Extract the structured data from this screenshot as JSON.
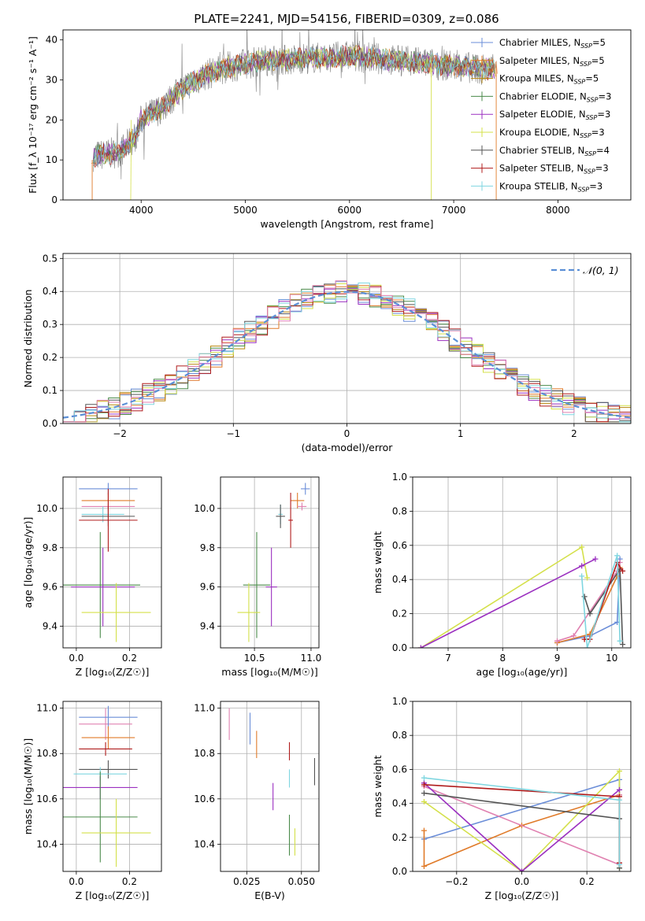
{
  "figure_title": "PLATE=2241, MJD=54156, FIBERID=0309, z=0.086",
  "colors": {
    "Chabrier MILES": "#6a8dd8",
    "Salpeter MILES": "#e07b2a",
    "Kroupa MILES": "#b8860b",
    "Chabrier ELODIE": "#4a8a4a",
    "Salpeter ELODIE": "#9b30c0",
    "Kroupa ELODIE": "#d4e04a",
    "Chabrier STELIB": "#555555",
    "Salpeter STELIB": "#b01c1c",
    "Kroupa STELIB": "#7fd6e0",
    "pink": "#e080b0",
    "gaussian": "#5b8fd6"
  },
  "chart_data": [
    {
      "id": "spectrum",
      "type": "line",
      "title": "PLATE=2241, MJD=54156, FIBERID=0309, z=0.086",
      "xlabel": "wavelength [Angstrom, rest frame]",
      "ylabel": "Flux [f_λ 10⁻¹⁷ erg cm⁻² s⁻¹ A⁻¹]",
      "xlim": [
        3250,
        8700
      ],
      "ylim": [
        0,
        42.5
      ],
      "xticks": [
        4000,
        5000,
        6000,
        7000,
        8000
      ],
      "yticks": [
        0,
        10,
        20,
        30,
        40
      ],
      "grid": false,
      "legend_position": "right",
      "continuum_x": [
        3550,
        3800,
        3950,
        4000,
        4200,
        4400,
        4600,
        4800,
        5000,
        5200,
        5400,
        5600,
        5800,
        6000,
        6200,
        6400,
        6600,
        6800,
        7000,
        7200,
        7400
      ],
      "continuum_y": [
        11,
        12,
        16,
        20,
        23,
        28,
        31,
        33,
        34,
        35,
        35,
        35.5,
        35.5,
        36,
        35.5,
        35,
        34.5,
        34,
        33.5,
        33,
        32.5
      ],
      "series": [
        {
          "name": "Chabrier MILES, N_SSP=5"
        },
        {
          "name": "Salpeter MILES, N_SSP=5"
        },
        {
          "name": "Kroupa MILES, N_SSP=5"
        },
        {
          "name": "Chabrier ELODIE, N_SSP=3"
        },
        {
          "name": "Salpeter ELODIE, N_SSP=3"
        },
        {
          "name": "Kroupa ELODIE, N_SSP=3"
        },
        {
          "name": "Chabrier STELIB, N_SSP=4"
        },
        {
          "name": "Salpeter STELIB, N_SSP=3"
        },
        {
          "name": "Kroupa STELIB, N_SSP=3"
        }
      ]
    },
    {
      "id": "residuals",
      "type": "step",
      "xlabel": "(data-model)/error",
      "ylabel": "Normed distribution",
      "xlim": [
        -2.5,
        2.5
      ],
      "ylim": [
        0,
        0.515
      ],
      "xticks": [
        -2,
        -1,
        0,
        1,
        2
      ],
      "yticks": [
        0.0,
        0.1,
        0.2,
        0.3,
        0.4,
        0.5
      ],
      "grid": true,
      "legend": [
        {
          "name": "𝒩(0, 1)"
        }
      ],
      "legend_position": "top-right",
      "bin_width": 0.1
    },
    {
      "id": "age_vs_Z",
      "type": "errorbar",
      "xlabel": "Z [log₁₀(Z/Z☉)]",
      "ylabel": "age  [log₁₀(age/yr)]",
      "xlim": [
        -0.05,
        0.32
      ],
      "ylim": [
        9.29,
        10.16
      ],
      "xticks": [
        0.0,
        0.2
      ],
      "yticks": [
        9.4,
        9.6,
        9.8,
        10.0
      ],
      "grid": true,
      "points": [
        {
          "c": "Chabrier MILES",
          "x": 0.12,
          "xe": 0.11,
          "y": 10.1,
          "ye": 0.03
        },
        {
          "c": "Salpeter MILES",
          "x": 0.12,
          "xe": 0.1,
          "y": 10.04,
          "ye": 0.04
        },
        {
          "c": "pink",
          "x": 0.12,
          "xe": 0.1,
          "y": 10.01,
          "ye": 0.02
        },
        {
          "c": "Kroupa STELIB",
          "x": 0.1,
          "xe": 0.08,
          "y": 9.97,
          "ye": 0.04
        },
        {
          "c": "Chabrier STELIB",
          "x": 0.12,
          "xe": 0.1,
          "y": 9.96,
          "ye": 0.05
        },
        {
          "c": "Salpeter STELIB",
          "x": 0.12,
          "xe": 0.11,
          "y": 9.94,
          "ye": 0.16
        },
        {
          "c": "Chabrier ELODIE",
          "x": 0.09,
          "xe": 0.15,
          "y": 9.61,
          "ye": 0.27
        },
        {
          "c": "Salpeter ELODIE",
          "x": 0.1,
          "xe": 0.12,
          "y": 9.6,
          "ye": 0.2
        },
        {
          "c": "Kroupa ELODIE",
          "x": 0.15,
          "xe": 0.13,
          "y": 9.47,
          "ye": 0.15
        }
      ]
    },
    {
      "id": "age_vs_mass",
      "type": "errorbar",
      "xlabel": "mass [log₁₀(M/M☉)]",
      "ylabel": "",
      "xlim": [
        10.2,
        11.07
      ],
      "ylim": [
        9.29,
        10.16
      ],
      "xticks": [
        10.5,
        11.0
      ],
      "yticks": [
        9.4,
        9.6,
        9.8,
        10.0
      ],
      "grid": true,
      "points": [
        {
          "c": "Chabrier MILES",
          "x": 10.95,
          "xe": 0.04,
          "y": 10.1,
          "ye": 0.03
        },
        {
          "c": "Salpeter MILES",
          "x": 10.88,
          "xe": 0.06,
          "y": 10.04,
          "ye": 0.04
        },
        {
          "c": "pink",
          "x": 10.92,
          "xe": 0.04,
          "y": 10.01,
          "ye": 0.02
        },
        {
          "c": "Kroupa STELIB",
          "x": 10.73,
          "xe": 0.02,
          "y": 9.97,
          "ye": 0.05
        },
        {
          "c": "Chabrier STELIB",
          "x": 10.73,
          "xe": 0.04,
          "y": 9.96,
          "ye": 0.06
        },
        {
          "c": "Salpeter STELIB",
          "x": 10.82,
          "xe": 0.02,
          "y": 9.94,
          "ye": 0.14
        },
        {
          "c": "Chabrier ELODIE",
          "x": 10.52,
          "xe": 0.12,
          "y": 9.61,
          "ye": 0.27
        },
        {
          "c": "Salpeter ELODIE",
          "x": 10.65,
          "xe": 0.05,
          "y": 9.6,
          "ye": 0.2
        },
        {
          "c": "Kroupa ELODIE",
          "x": 10.45,
          "xe": 0.1,
          "y": 9.47,
          "ye": 0.15
        }
      ]
    },
    {
      "id": "massweight_vs_age",
      "type": "line",
      "xlabel": "age  [log₁₀(age/yr)]",
      "ylabel": "mass weight",
      "xlim": [
        6.35,
        10.35
      ],
      "ylim": [
        0,
        1.0
      ],
      "xticks": [
        7,
        8,
        9,
        10
      ],
      "yticks": [
        0.0,
        0.2,
        0.4,
        0.6,
        0.8,
        1.0
      ],
      "grid": true,
      "series": [
        {
          "c": "Chabrier MILES",
          "x": [
            9.0,
            9.6,
            10.1,
            10.15
          ],
          "y": [
            0.03,
            0.07,
            0.15,
            0.52
          ]
        },
        {
          "c": "Salpeter MILES",
          "x": [
            9.0,
            9.6,
            10.1,
            10.15
          ],
          "y": [
            0.03,
            0.08,
            0.42,
            0.47
          ]
        },
        {
          "c": "pink",
          "x": [
            9.0,
            9.3,
            10.1,
            10.15
          ],
          "y": [
            0.04,
            0.07,
            0.45,
            0.5
          ]
        },
        {
          "c": "Kroupa ELODIE",
          "x": [
            6.5,
            9.45,
            9.55
          ],
          "y": [
            0.0,
            0.59,
            0.41
          ]
        },
        {
          "c": "Salpeter ELODIE",
          "x": [
            6.5,
            9.45,
            9.7
          ],
          "y": [
            0.0,
            0.48,
            0.52
          ]
        },
        {
          "c": "Chabrier STELIB",
          "x": [
            9.5,
            9.6,
            10.15,
            10.2
          ],
          "y": [
            0.3,
            0.2,
            0.46,
            0.02
          ]
        },
        {
          "c": "Salpeter STELIB",
          "x": [
            9.5,
            9.6,
            10.1,
            10.2
          ],
          "y": [
            0.05,
            0.05,
            0.5,
            0.45
          ]
        },
        {
          "c": "Kroupa STELIB",
          "x": [
            9.45,
            9.55,
            10.1,
            10.15
          ],
          "y": [
            0.42,
            0.0,
            0.54,
            0.04
          ]
        }
      ]
    },
    {
      "id": "mass_vs_Z",
      "type": "errorbar",
      "xlabel": "Z [log₁₀(Z/Z☉)]",
      "ylabel": "mass [log₁₀(M/M☉)]",
      "xlim": [
        -0.05,
        0.32
      ],
      "ylim": [
        10.28,
        11.03
      ],
      "xticks": [
        0.0,
        0.2
      ],
      "yticks": [
        10.4,
        10.6,
        10.8,
        11.0
      ],
      "grid": true,
      "points": [
        {
          "c": "pink",
          "x": 0.11,
          "xe": 0.1,
          "y": 10.93,
          "ye": 0.07
        },
        {
          "c": "Chabrier MILES",
          "x": 0.12,
          "xe": 0.11,
          "y": 10.96,
          "ye": 0.05
        },
        {
          "c": "Salpeter MILES",
          "x": 0.12,
          "xe": 0.1,
          "y": 10.87,
          "ye": 0.05
        },
        {
          "c": "Salpeter STELIB",
          "x": 0.11,
          "xe": 0.1,
          "y": 10.82,
          "ye": 0.03
        },
        {
          "c": "Chabrier STELIB",
          "x": 0.12,
          "xe": 0.11,
          "y": 10.73,
          "ye": 0.04
        },
        {
          "c": "Kroupa STELIB",
          "x": 0.09,
          "xe": 0.1,
          "y": 10.71,
          "ye": 0.03
        },
        {
          "c": "Salpeter ELODIE",
          "x": 0.09,
          "xe": 0.14,
          "y": 10.65,
          "ye": 0.05
        },
        {
          "c": "Chabrier ELODIE",
          "x": 0.09,
          "xe": 0.14,
          "y": 10.52,
          "ye": 0.2
        },
        {
          "c": "Kroupa ELODIE",
          "x": 0.15,
          "xe": 0.13,
          "y": 10.45,
          "ye": 0.15
        }
      ]
    },
    {
      "id": "mass_vs_ebv",
      "type": "errorbar",
      "xlabel": "E(B-V)",
      "ylabel": "",
      "xlim": [
        0.013,
        0.058
      ],
      "ylim": [
        10.28,
        11.03
      ],
      "xticks": [
        0.025,
        0.05
      ],
      "yticks": [
        10.4,
        10.6,
        10.8,
        11.0
      ],
      "grid": true,
      "points": [
        {
          "c": "pink",
          "x": 0.017,
          "y": 10.93,
          "ye": 0.07
        },
        {
          "c": "Chabrier MILES",
          "x": 0.0265,
          "y": 10.91,
          "ye": 0.07
        },
        {
          "c": "Salpeter MILES",
          "x": 0.0295,
          "y": 10.84,
          "ye": 0.06
        },
        {
          "c": "Salpeter STELIB",
          "x": 0.0445,
          "y": 10.81,
          "ye": 0.04
        },
        {
          "c": "Chabrier STELIB",
          "x": 0.056,
          "y": 10.72,
          "ye": 0.06
        },
        {
          "c": "Kroupa STELIB",
          "x": 0.0445,
          "y": 10.69,
          "ye": 0.04
        },
        {
          "c": "Salpeter ELODIE",
          "x": 0.037,
          "y": 10.61,
          "ye": 0.06
        },
        {
          "c": "Chabrier ELODIE",
          "x": 0.0445,
          "y": 10.44,
          "ye": 0.09
        },
        {
          "c": "Kroupa ELODIE",
          "x": 0.047,
          "y": 10.41,
          "ye": 0.06
        }
      ]
    },
    {
      "id": "massweight_vs_Z",
      "type": "line",
      "xlabel": "Z [log₁₀(Z/Z☉)]",
      "ylabel": "mass weight",
      "xlim": [
        -0.335,
        0.335
      ],
      "ylim": [
        0,
        1.0
      ],
      "xticks": [
        -0.2,
        0.0,
        0.2
      ],
      "yticks": [
        0.0,
        0.2,
        0.4,
        0.6,
        0.8,
        1.0
      ],
      "grid": true,
      "series": [
        {
          "c": "Chabrier MILES",
          "x": [
            -0.3,
            0.3,
            0.3
          ],
          "y": [
            0.19,
            0.54,
            0.02
          ]
        },
        {
          "c": "Salpeter MILES",
          "x": [
            -0.3,
            -0.3,
            0.0,
            0.3
          ],
          "y": [
            0.24,
            0.03,
            0.27,
            0.45
          ]
        },
        {
          "c": "pink",
          "x": [
            -0.3,
            0.3,
            0.3
          ],
          "y": [
            0.5,
            0.04,
            0.45
          ]
        },
        {
          "c": "Kroupa ELODIE",
          "x": [
            -0.3,
            0.0,
            0.3,
            0.3
          ],
          "y": [
            0.41,
            0.0,
            0.59,
            0.02
          ]
        },
        {
          "c": "Salpeter ELODIE",
          "x": [
            -0.3,
            0.0,
            0.3
          ],
          "y": [
            0.52,
            0.0,
            0.48
          ]
        },
        {
          "c": "Chabrier STELIB",
          "x": [
            -0.3,
            0.3,
            0.3
          ],
          "y": [
            0.46,
            0.31,
            0.02
          ]
        },
        {
          "c": "Salpeter STELIB",
          "x": [
            -0.3,
            0.3,
            0.3
          ],
          "y": [
            0.51,
            0.44,
            0.05
          ]
        },
        {
          "c": "Kroupa STELIB",
          "x": [
            -0.3,
            0.3,
            0.3
          ],
          "y": [
            0.55,
            0.42,
            0.04
          ]
        }
      ]
    }
  ]
}
